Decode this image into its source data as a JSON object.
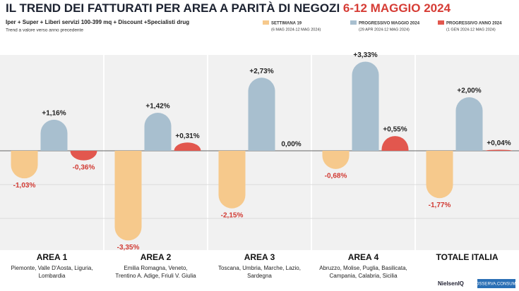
{
  "chart_data": {
    "type": "bar",
    "title": "IL TREND DEI FATTURATI PER AREA A PARITÀ DI NEGOZI",
    "title_highlight": "6-12 MAGGIO 2024",
    "subtitle": "Iper + Super + Liberi servizi 100-399 mq + Discount +Specialisti drug",
    "note": "Trend a valore verso anno precedente",
    "categories": [
      "AREA 1",
      "AREA 2",
      "AREA 3",
      "AREA 4",
      "TOTALE ITALIA"
    ],
    "category_details": [
      [
        "Piemonte, Valle D'Aosta, Liguria,",
        "Lombardia"
      ],
      [
        "Emilia Romagna, Veneto,",
        "Trentino A. Adige, Friuli V. Giulia"
      ],
      [
        "Toscana, Umbria, Marche, Lazio,",
        "Sardegna"
      ],
      [
        "Abruzzo, Molise, Puglia, Basilicata,",
        "Campania, Calabria, Sicilia"
      ],
      []
    ],
    "series": [
      {
        "name": "SETTIMANA 19",
        "period": "(6 MAG 2024-12 MAG 2024)",
        "color": "#f6c98c",
        "values": [
          -1.03,
          -3.35,
          -2.15,
          -0.68,
          -1.77
        ],
        "value_labels": [
          "-1,03%",
          "-3,35%",
          "-2,15%",
          "-0,68%",
          "-1,77%"
        ]
      },
      {
        "name": "PROGRESSIVO MAGGIO 2024",
        "period": "(29 APR 2024-12 MAG 2024)",
        "color": "#a8bfcf",
        "values": [
          1.16,
          1.42,
          2.73,
          3.33,
          2.0
        ],
        "value_labels": [
          "+1,16%",
          "+1,42%",
          "+2,73%",
          "+3,33%",
          "+2,00%"
        ]
      },
      {
        "name": "PROGRESSIVO ANNO 2024",
        "period": "(1 GEN 2024-12 MAG 2024)",
        "color": "#e2574e",
        "values": [
          -0.36,
          0.31,
          0.0,
          0.55,
          0.04
        ],
        "value_labels": [
          "-0,36%",
          "+0,31%",
          "0,00%",
          "+0,55%",
          "+0,04%"
        ]
      }
    ],
    "credits": [
      "NielsenIQ",
      "OSSERVA.CONSUMI"
    ]
  }
}
